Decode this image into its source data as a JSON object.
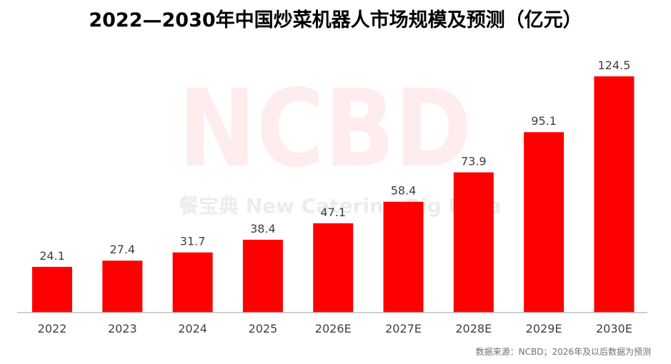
{
  "title": "2022—2030年中国炒菜机器人市场规模及预测（亿元）",
  "source": "数据来源：NCBD；2026年及以后数据为预测",
  "watermark": {
    "logo": "NCBD",
    "sub": "餐宝典  New Catering Big Data"
  },
  "colors": {
    "bar": "#ff0000",
    "axis": "#bfbfbf",
    "text": "#404040"
  },
  "chart_data": {
    "type": "bar",
    "title": "2022—2030年中国炒菜机器人市场规模及预测（亿元）",
    "categories": [
      "2022",
      "2023",
      "2024",
      "2025",
      "2026E",
      "2027E",
      "2028E",
      "2029E",
      "2030E"
    ],
    "values": [
      24.1,
      27.4,
      31.7,
      38.4,
      47.1,
      58.4,
      73.9,
      95.1,
      124.5
    ],
    "data_labels": [
      "24.1",
      "27.4",
      "31.7",
      "38.4",
      "47.1",
      "58.4",
      "73.9",
      "95.1",
      "124.5"
    ],
    "ylim": [
      0,
      124.5
    ],
    "grid": false,
    "legend": "none"
  }
}
